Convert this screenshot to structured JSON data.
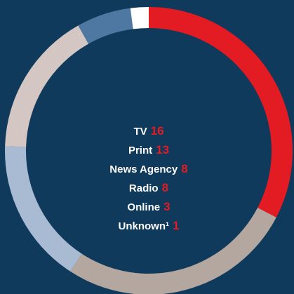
{
  "chart_data": {
    "type": "pie",
    "categories": [
      "TV",
      "Print",
      "News Agency",
      "Radio",
      "Online",
      "Unknown¹"
    ],
    "values": [
      16,
      13,
      8,
      8,
      3,
      1
    ],
    "colors": [
      "#e31b23",
      "#b4a79f",
      "#a8bbd3",
      "#d4c7c3",
      "#4e78a2",
      "#ffffff"
    ]
  }
}
